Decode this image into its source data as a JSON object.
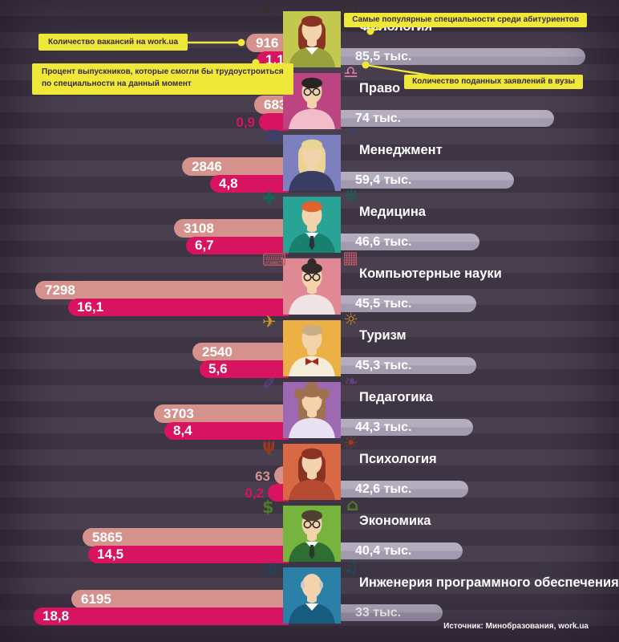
{
  "legend": {
    "vacancies_label": "Количество вакансий на work.ua",
    "percent_label_line1": "Процент выпускников, которые смогли бы трудоустроиться",
    "percent_label_line2": "по специальности на данный момент",
    "popular_label": "Самые популярные специальности среди абитуриентов",
    "applications_label": "Количество поданных заявлений в вузы"
  },
  "source": "Источник: Минобразования, work.ua",
  "colors": {
    "background": "#423849",
    "accent_yellow": "#f0e838",
    "bar_vacancies": "#d5928c",
    "bar_percent": "#d81360",
    "bar_applications": "#a8a1b5",
    "text_white": "#ffffff",
    "callout_text": "#372a3e"
  },
  "chart_data": {
    "type": "bar",
    "title": "Самые популярные специальности среди абитуриентов",
    "categories": [
      "Филология",
      "Право",
      "Менеджмент",
      "Медицина",
      "Компьютерные науки",
      "Туризм",
      "Педагогика",
      "Психология",
      "Экономика",
      "Инженерия программного обеспечения"
    ],
    "series": [
      {
        "name": "Количество вакансий на work.ua",
        "values": [
          916,
          683,
          2846,
          3108,
          7298,
          2540,
          3703,
          63,
          5865,
          6195
        ]
      },
      {
        "name": "Процент выпускников, которые смогли бы трудоустроиться по специальности на данный момент",
        "values": [
          1.1,
          0.9,
          4.8,
          6.7,
          16.1,
          5.6,
          8.4,
          0.2,
          14.5,
          18.8
        ]
      },
      {
        "name": "Количество поданных заявлений в вузы (тыс.)",
        "values": [
          85.5,
          74,
          59.4,
          46.6,
          45.5,
          45.3,
          44.3,
          42.6,
          40.4,
          33
        ]
      }
    ],
    "legend_position": "callouts-top",
    "grid": false,
    "orientation": "horizontal"
  },
  "rows": [
    {
      "name": "Филология",
      "vacancies_label": "916",
      "percent_label": "1,1",
      "applications_label": "85,5 тыс.",
      "avatar": {
        "bg": "#c3c84e",
        "hair": "#8a3224",
        "shirt": "#99a13c",
        "hairstyle": "long",
        "glasses": false,
        "collar": true,
        "doodles": [
          {
            "glyph": "✎",
            "name": "pencil-icon"
          },
          {
            "glyph": "❏",
            "name": "book-icon"
          }
        ],
        "doodle_color": "#343222"
      }
    },
    {
      "name": "Право",
      "vacancies_label": "683",
      "percent_label": "0,9",
      "applications_label": "74 тыс.",
      "avatar": {
        "bg": "#bc4480",
        "hair": "#292424",
        "shirt": "#f2bccb",
        "hairstyle": "short",
        "glasses": true,
        "collar": false,
        "doodles": [
          {
            "glyph": "✒",
            "name": "pen-icon"
          },
          {
            "glyph": "♎",
            "name": "scales-icon"
          }
        ],
        "doodle_color": "#e984ad"
      }
    },
    {
      "name": "Менеджмент",
      "vacancies_label": "2846",
      "percent_label": "4,8",
      "applications_label": "59,4 тыс.",
      "avatar": {
        "bg": "#7c80bf",
        "hair": "#e9d395",
        "shirt": "#393d63",
        "hairstyle": "long",
        "glasses": false,
        "collar": false,
        "doodles": [
          {
            "glyph": "☎",
            "name": "phone-icon"
          },
          {
            "glyph": "❝",
            "name": "speech-bubble-icon"
          }
        ],
        "doodle_color": "#3c4070"
      }
    },
    {
      "name": "Медицина",
      "vacancies_label": "3108",
      "percent_label": "6,7",
      "applications_label": "46,6 тыс.",
      "avatar": {
        "bg": "#28a396",
        "hair": "#e0622c",
        "shirt": "#17806f",
        "hairstyle": "short",
        "glasses": false,
        "collar": true,
        "tie": "#27333b",
        "doodles": [
          {
            "glyph": "✚",
            "name": "medical-cross-icon"
          },
          {
            "glyph": "❊",
            "name": "atom-icon"
          }
        ],
        "doodle_color": "#11695d"
      }
    },
    {
      "name": "Компьютерные науки",
      "vacancies_label": "7298",
      "percent_label": "16,1",
      "applications_label": "45,5 тыс.",
      "avatar": {
        "bg": "#e08893",
        "hair": "#332a2a",
        "shirt": "#f1e4e6",
        "hairstyle": "bun",
        "glasses": true,
        "collar": false,
        "doodles": [
          {
            "glyph": "⌨",
            "name": "keyboard-icon"
          },
          {
            "glyph": "▦",
            "name": "monitor-icon"
          }
        ],
        "doodle_color": "#c05a68"
      }
    },
    {
      "name": "Туризм",
      "vacancies_label": "2540",
      "percent_label": "5,6",
      "applications_label": "45,3 тыс.",
      "avatar": {
        "bg": "#edb044",
        "hair": "#c9ae85",
        "shirt": "#f5ecd9",
        "hairstyle": "short",
        "glasses": false,
        "collar": false,
        "bow": "#a5281f",
        "doodles": [
          {
            "glyph": "✈",
            "name": "airplane-icon"
          },
          {
            "glyph": "☼",
            "name": "palm-sun-icon"
          }
        ],
        "doodle_color": "#d99426"
      }
    },
    {
      "name": "Педагогика",
      "vacancies_label": "3703",
      "percent_label": "8,4",
      "applications_label": "44,3 тыс.",
      "avatar": {
        "bg": "#9d69b3",
        "hair": "#a0714f",
        "shirt": "#e9e2f2",
        "hairstyle": "curly",
        "glasses": false,
        "collar": false,
        "doodles": [
          {
            "glyph": "✐",
            "name": "graduation-cap-icon"
          },
          {
            "glyph": "❧",
            "name": "books-icon"
          }
        ],
        "doodle_color": "#6e3f85"
      }
    },
    {
      "name": "Психология",
      "vacancies_label": "63",
      "percent_label": "0,2",
      "applications_label": "42,6 тыс.",
      "avatar": {
        "bg": "#d96945",
        "hair": "#8a3224",
        "shirt": "#b64a31",
        "hairstyle": "long",
        "glasses": false,
        "collar": false,
        "doodles": [
          {
            "glyph": "ψ",
            "name": "psi-icon"
          },
          {
            "glyph": "☀",
            "name": "sun-icon"
          }
        ],
        "doodle_color": "#9c3a20"
      }
    },
    {
      "name": "Экономика",
      "vacancies_label": "5865",
      "percent_label": "14,5",
      "applications_label": "40,4 тыс.",
      "avatar": {
        "bg": "#76b43e",
        "hair": "#4e4031",
        "shirt": "#2f6e33",
        "hairstyle": "short",
        "glasses": true,
        "collar": true,
        "tie": "#223a26",
        "doodles": [
          {
            "glyph": "$",
            "name": "dollar-icon"
          },
          {
            "glyph": "⌂",
            "name": "bank-icon"
          }
        ],
        "doodle_color": "#4c8027"
      }
    },
    {
      "name": "Инженерия программного обеспечения",
      "vacancies_label": "6195",
      "percent_label": "18,8",
      "applications_label": "33 тыс.",
      "avatar": {
        "bg": "#2b80a8",
        "hair": "#c9c9c9",
        "shirt": "#175c7f",
        "hairstyle": "bald",
        "glasses": false,
        "collar": true,
        "doodles": [
          {
            "glyph": "☏",
            "name": "headset-icon"
          },
          {
            "glyph": "♫",
            "name": "laptop-icon"
          }
        ],
        "doodle_color": "#15536e"
      }
    }
  ]
}
